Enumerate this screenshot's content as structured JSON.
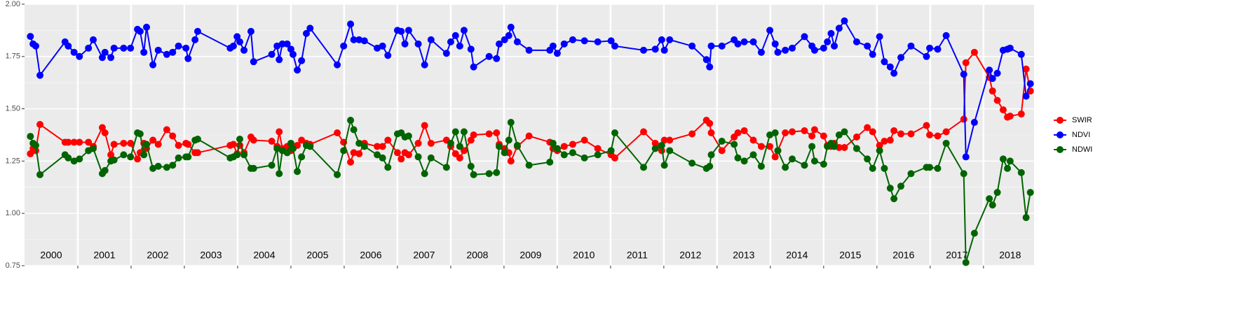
{
  "chart_data": {
    "type": "line",
    "x": [
      2000.11,
      2000.16,
      2000.21,
      2000.29,
      2000.76,
      2000.82,
      2000.93,
      2001.03,
      2001.2,
      2001.29,
      2001.46,
      2001.51,
      2001.62,
      2001.68,
      2001.86,
      2001.99,
      2002.12,
      2002.17,
      2002.24,
      2002.29,
      2002.41,
      2002.51,
      2002.67,
      2002.78,
      2002.89,
      2003.03,
      2003.07,
      2003.2,
      2003.25,
      2003.86,
      2003.92,
      2003.99,
      2004.04,
      2004.12,
      2004.25,
      2004.3,
      2004.64,
      2004.74,
      2004.78,
      2004.84,
      2004.93,
      2005.0,
      2005.04,
      2005.12,
      2005.2,
      2005.29,
      2005.36,
      2005.87,
      2005.99,
      2006.12,
      2006.18,
      2006.28,
      2006.38,
      2006.62,
      2006.72,
      2006.82,
      2007.0,
      2007.07,
      2007.14,
      2007.21,
      2007.39,
      2007.51,
      2007.63,
      2007.92,
      2008.0,
      2008.09,
      2008.17,
      2008.25,
      2008.38,
      2008.43,
      2008.72,
      2008.86,
      2008.91,
      2009.01,
      2009.09,
      2009.13,
      2009.25,
      2009.47,
      2009.86,
      2009.92,
      2010.0,
      2010.13,
      2010.29,
      2010.51,
      2010.76,
      2011.01,
      2011.08,
      2011.62,
      2011.84,
      2011.96,
      2012.01,
      2012.11,
      2012.53,
      2012.8,
      2012.86,
      2012.89,
      2013.09,
      2013.32,
      2013.39,
      2013.51,
      2013.68,
      2013.83,
      2013.99,
      2014.09,
      2014.14,
      2014.28,
      2014.41,
      2014.64,
      2014.78,
      2014.83,
      2015.0,
      2015.07,
      2015.14,
      2015.2,
      2015.29,
      2015.39,
      2015.62,
      2015.82,
      2015.92,
      2016.05,
      2016.14,
      2016.25,
      2016.32,
      2016.45,
      2016.64,
      2016.93,
      2016.99,
      2017.14,
      2017.3,
      2017.63,
      2017.67,
      2017.83,
      2018.11,
      2018.17,
      2018.26,
      2018.37,
      2018.45,
      2018.5,
      2018.71,
      2018.8,
      2018.88
    ],
    "series": [
      {
        "name": "SWIR",
        "color": "#ff0000",
        "values": [
          1.285,
          1.31,
          1.3,
          1.425,
          1.34,
          1.34,
          1.34,
          1.34,
          1.34,
          1.32,
          1.41,
          1.385,
          1.28,
          1.33,
          1.335,
          1.335,
          1.26,
          1.29,
          1.335,
          1.31,
          1.35,
          1.33,
          1.4,
          1.37,
          1.325,
          1.335,
          1.33,
          1.29,
          1.29,
          1.325,
          1.33,
          1.285,
          1.325,
          1.29,
          1.365,
          1.35,
          1.345,
          1.32,
          1.39,
          1.31,
          1.32,
          1.3,
          1.31,
          1.325,
          1.35,
          1.335,
          1.33,
          1.385,
          1.34,
          1.245,
          1.29,
          1.285,
          1.335,
          1.32,
          1.32,
          1.35,
          1.29,
          1.26,
          1.29,
          1.28,
          1.335,
          1.42,
          1.335,
          1.35,
          1.32,
          1.285,
          1.265,
          1.3,
          1.35,
          1.375,
          1.38,
          1.385,
          1.33,
          1.31,
          1.29,
          1.25,
          1.32,
          1.37,
          1.34,
          1.31,
          1.3,
          1.32,
          1.33,
          1.35,
          1.31,
          1.28,
          1.265,
          1.39,
          1.335,
          1.3,
          1.35,
          1.35,
          1.38,
          1.445,
          1.43,
          1.385,
          1.3,
          1.365,
          1.385,
          1.395,
          1.35,
          1.32,
          1.32,
          1.27,
          1.3,
          1.385,
          1.39,
          1.395,
          1.37,
          1.4,
          1.37,
          1.325,
          1.32,
          1.335,
          1.315,
          1.315,
          1.365,
          1.41,
          1.39,
          1.325,
          1.345,
          1.35,
          1.395,
          1.38,
          1.38,
          1.42,
          1.375,
          1.37,
          1.39,
          1.45,
          1.72,
          1.77,
          1.65,
          1.585,
          1.54,
          1.495,
          1.46,
          1.465,
          1.475,
          1.69,
          1.585
        ]
      },
      {
        "name": "NDVI",
        "color": "#0000ff",
        "values": [
          1.846,
          1.81,
          1.8,
          1.66,
          1.82,
          1.8,
          1.77,
          1.75,
          1.79,
          1.83,
          1.745,
          1.77,
          1.745,
          1.79,
          1.79,
          1.79,
          1.88,
          1.87,
          1.77,
          1.89,
          1.71,
          1.78,
          1.76,
          1.77,
          1.8,
          1.79,
          1.74,
          1.83,
          1.87,
          1.79,
          1.8,
          1.845,
          1.82,
          1.78,
          1.87,
          1.725,
          1.76,
          1.8,
          1.735,
          1.81,
          1.81,
          1.785,
          1.76,
          1.685,
          1.73,
          1.86,
          1.885,
          1.71,
          1.8,
          1.905,
          1.83,
          1.83,
          1.825,
          1.79,
          1.8,
          1.755,
          1.875,
          1.87,
          1.81,
          1.875,
          1.81,
          1.71,
          1.83,
          1.765,
          1.82,
          1.85,
          1.8,
          1.875,
          1.785,
          1.7,
          1.75,
          1.74,
          1.81,
          1.83,
          1.85,
          1.89,
          1.82,
          1.78,
          1.78,
          1.8,
          1.765,
          1.81,
          1.83,
          1.825,
          1.82,
          1.825,
          1.8,
          1.78,
          1.785,
          1.83,
          1.78,
          1.83,
          1.8,
          1.735,
          1.7,
          1.8,
          1.8,
          1.83,
          1.81,
          1.82,
          1.82,
          1.77,
          1.875,
          1.81,
          1.77,
          1.78,
          1.79,
          1.845,
          1.8,
          1.78,
          1.79,
          1.82,
          1.86,
          1.8,
          1.885,
          1.92,
          1.82,
          1.8,
          1.76,
          1.845,
          1.725,
          1.7,
          1.67,
          1.745,
          1.8,
          1.75,
          1.79,
          1.785,
          1.85,
          1.665,
          1.27,
          1.435,
          1.685,
          1.645,
          1.67,
          1.78,
          1.785,
          1.79,
          1.76,
          1.56,
          1.62
        ]
      },
      {
        "name": "NDWI",
        "color": "#006400",
        "values": [
          1.368,
          1.335,
          1.325,
          1.185,
          1.28,
          1.265,
          1.25,
          1.26,
          1.3,
          1.31,
          1.19,
          1.205,
          1.25,
          1.255,
          1.28,
          1.27,
          1.385,
          1.38,
          1.28,
          1.33,
          1.215,
          1.225,
          1.22,
          1.23,
          1.265,
          1.27,
          1.27,
          1.35,
          1.355,
          1.265,
          1.27,
          1.28,
          1.355,
          1.28,
          1.215,
          1.215,
          1.23,
          1.31,
          1.19,
          1.3,
          1.29,
          1.335,
          1.31,
          1.2,
          1.27,
          1.325,
          1.32,
          1.185,
          1.3,
          1.445,
          1.4,
          1.335,
          1.32,
          1.28,
          1.265,
          1.22,
          1.38,
          1.385,
          1.365,
          1.37,
          1.27,
          1.19,
          1.265,
          1.22,
          1.335,
          1.39,
          1.32,
          1.39,
          1.225,
          1.185,
          1.19,
          1.195,
          1.32,
          1.29,
          1.35,
          1.435,
          1.325,
          1.23,
          1.245,
          1.335,
          1.31,
          1.28,
          1.29,
          1.265,
          1.28,
          1.3,
          1.385,
          1.22,
          1.31,
          1.325,
          1.23,
          1.3,
          1.24,
          1.215,
          1.225,
          1.28,
          1.345,
          1.33,
          1.265,
          1.25,
          1.28,
          1.225,
          1.375,
          1.385,
          1.3,
          1.22,
          1.26,
          1.23,
          1.32,
          1.25,
          1.235,
          1.32,
          1.335,
          1.32,
          1.375,
          1.39,
          1.31,
          1.26,
          1.215,
          1.3,
          1.215,
          1.12,
          1.07,
          1.13,
          1.19,
          1.22,
          1.22,
          1.215,
          1.335,
          1.19,
          0.765,
          0.905,
          1.07,
          1.04,
          1.1,
          1.26,
          1.215,
          1.25,
          1.195,
          0.98,
          1.1
        ]
      }
    ],
    "xlim": [
      2000,
      2018.95
    ],
    "xticks": [
      2001,
      2002,
      2003,
      2004,
      2005,
      2006,
      2007,
      2008,
      2009,
      2010,
      2011,
      2012,
      2013,
      2014,
      2015,
      2016,
      2017,
      2018
    ],
    "year_labels": [
      "2000",
      "2001",
      "2002",
      "2003",
      "2004",
      "2005",
      "2006",
      "2007",
      "2008",
      "2009",
      "2010",
      "2011",
      "2012",
      "2013",
      "2014",
      "2015",
      "2016",
      "2017",
      "2018"
    ],
    "ylim": [
      0.75,
      2.0
    ],
    "yticks": [
      {
        "value": 0.75,
        "label": "0.75"
      },
      {
        "value": 1.0,
        "label": "1.00"
      },
      {
        "value": 1.25,
        "label": "1.25"
      },
      {
        "value": 1.5,
        "label": "1.50"
      },
      {
        "value": 1.75,
        "label": "1.75"
      },
      {
        "value": 2.0,
        "label": "2.00"
      }
    ],
    "grid": true,
    "legend": "right"
  }
}
